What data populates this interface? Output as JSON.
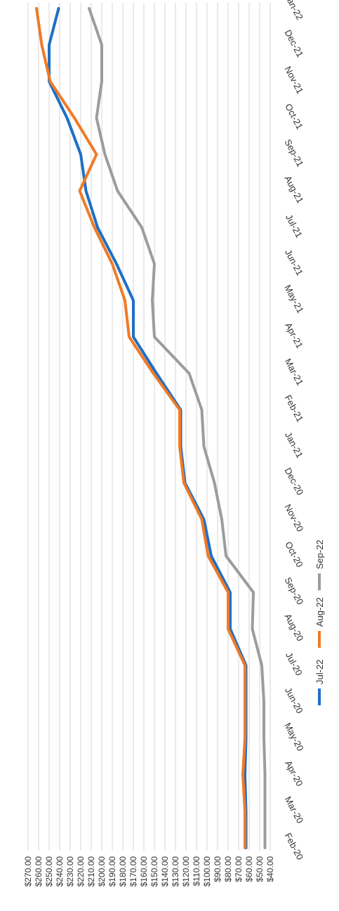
{
  "chart_data": {
    "type": "line",
    "orientation": "rotated-90-clockwise",
    "categories": [
      "Feb-20",
      "Mar-20",
      "Apr-20",
      "May-20",
      "Jun-20",
      "Jul-20",
      "Aug-20",
      "Sep-20",
      "Oct-20",
      "Nov-20",
      "Dec-20",
      "Jan-21",
      "Feb-21",
      "Mar-21",
      "Apr-21",
      "May-21",
      "Jun-21",
      "Jul-21",
      "Aug-21",
      "Sep-21",
      "Oct-21",
      "Nov-21",
      "Dec-21",
      "Jan-22"
    ],
    "y_ticks": [
      "$270.00",
      "$260.00",
      "$250.00",
      "$240.00",
      "$230.00",
      "$220.00",
      "$210.00",
      "$200.00",
      "$190.00",
      "$180.00",
      "$170.00",
      "$160.00",
      "$150.00",
      "$140.00",
      "$130.00",
      "$120.00",
      "$110.00",
      "$100.00",
      "$90.00",
      "$80.00",
      "$70.00",
      "$60.00",
      "$50.00",
      "$40.00"
    ],
    "ylim": [
      40,
      270
    ],
    "grid": true,
    "legend_position": "bottom",
    "series": [
      {
        "name": "Jul-22",
        "color": "#1f6fc5",
        "values": [
          63,
          63,
          64,
          63,
          63,
          63,
          78,
          78,
          96,
          103,
          121,
          125,
          125,
          148,
          170,
          170,
          186,
          204,
          215,
          220,
          233,
          250,
          250,
          241
        ]
      },
      {
        "name": "Aug-22",
        "color": "#f07a26",
        "values": [
          64,
          64,
          66,
          64,
          64,
          64,
          80,
          80,
          99,
          105,
          122,
          126,
          126,
          151,
          174,
          178,
          190,
          207,
          221,
          205,
          226,
          249,
          257,
          262
        ]
      },
      {
        "name": "Sep-22",
        "color": "#9c9c9c",
        "values": [
          45,
          45,
          45,
          46,
          46,
          48,
          57,
          56,
          82,
          86,
          93,
          103,
          105,
          117,
          150,
          152,
          150,
          162,
          185,
          197,
          205,
          200,
          200,
          212
        ]
      }
    ]
  }
}
